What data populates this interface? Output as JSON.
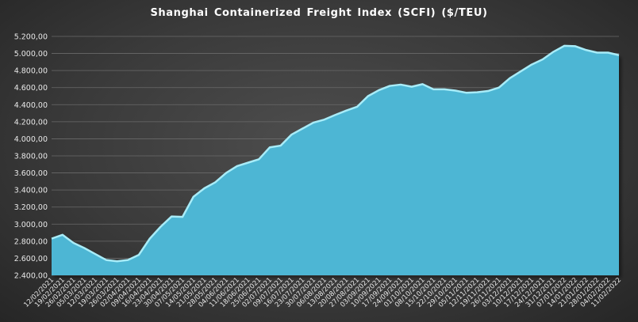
{
  "chart_data": {
    "type": "area",
    "title": "Shanghai Containerized Freight Index  (SCFI) ($/TEU)",
    "xlabel": "",
    "ylabel": "",
    "ylim": [
      2400,
      5200
    ],
    "y_ticks": [
      "5.200,00",
      "5.000,00",
      "4.800,00",
      "4.600,00",
      "4.400,00",
      "4.200,00",
      "4.000,00",
      "3.800,00",
      "3.600,00",
      "3.400,00",
      "3.200,00",
      "3.000,00",
      "2.800,00",
      "2.600,00",
      "2.400,00"
    ],
    "y_tick_values": [
      5200,
      5000,
      4800,
      4600,
      4400,
      4200,
      4000,
      3800,
      3600,
      3400,
      3200,
      3000,
      2800,
      2600,
      2400
    ],
    "grid": true,
    "legend": "none",
    "fill_color": "#4db6d4",
    "line_color": "#a8ecf8",
    "x": [
      "12/02/2021",
      "19/02/2021",
      "26/02/2021",
      "05/03/2021",
      "12/03/2021",
      "19/03/2021",
      "26/03/2021",
      "02/04/2021",
      "09/04/2021",
      "16/04/2021",
      "23/04/2021",
      "30/04/2021",
      "07/05/2021",
      "14/05/2021",
      "21/05/2021",
      "28/05/2021",
      "04/06/2021",
      "11/06/2021",
      "18/06/2021",
      "25/06/2021",
      "02/07/2021",
      "09/07/2021",
      "16/07/2021",
      "23/07/2021",
      "30/07/2021",
      "06/08/2021",
      "13/08/2021",
      "20/08/2021",
      "27/08/2021",
      "03/09/2021",
      "10/09/2021",
      "17/09/2021",
      "24/09/2021",
      "01/10/2021",
      "08/10/2021",
      "15/10/2021",
      "22/10/2021",
      "29/10/2021",
      "05/11/2021",
      "12/11/2021",
      "19/11/2021",
      "26/11/2021",
      "03/12/2021",
      "10/12/2021",
      "17/12/2021",
      "24/12/2021",
      "31/12/2021",
      "07/01/2022",
      "14/01/2022",
      "21/01/2022",
      "28/01/2022",
      "04/02/2022",
      "11/02/2022"
    ],
    "values": [
      2830,
      2875,
      2780,
      2720,
      2650,
      2580,
      2565,
      2580,
      2640,
      2830,
      2970,
      3090,
      3085,
      3320,
      3420,
      3490,
      3600,
      3680,
      3720,
      3760,
      3900,
      3920,
      4050,
      4120,
      4190,
      4225,
      4280,
      4330,
      4375,
      4500,
      4570,
      4620,
      4635,
      4610,
      4640,
      4580,
      4580,
      4565,
      4540,
      4545,
      4560,
      4600,
      4710,
      4790,
      4870,
      4930,
      5020,
      5090,
      5085,
      5040,
      5010,
      5010,
      4980
    ],
    "x_tick_labels": [
      "12/02/2021",
      "19/02/2021",
      "26/02/2021",
      "05/03/2021",
      "12/03/2021",
      "19/03/2021",
      "26/03/2021",
      "02/04/2021",
      "09/04/2021",
      "16/04/2021",
      "23/04/2021",
      "30/04/2021",
      "07/05/2021",
      "14/05/2021",
      "21/05/2021",
      "28/05/2021",
      "04/06/2021",
      "11/06/2021",
      "18/06/2021",
      "25/06/2021",
      "02/07/2021",
      "09/07/2021",
      "16/07/2021",
      "23/07/2021",
      "30/07/2021",
      "06/08/2021",
      "13/08/2021",
      "20/08/2021",
      "27/08/2021",
      "03/09/2021",
      "10/09/2021",
      "17/09/2021",
      "24/09/2021",
      "01/10/2021",
      "08/10/2021",
      "15/10/2021",
      "22/10/2021",
      "29/10/2021",
      "05/11/2021",
      "12/11/2021",
      "19/11/2021",
      "26/11/2021",
      "03/12/2021",
      "10/12/2021",
      "17/12/2021",
      "24/12/2021",
      "31/12/2021",
      "07/01/2022",
      "14/01/2022",
      "21/01/2022",
      "28/01/2022",
      "04/02/2022",
      "11/02/2022"
    ]
  }
}
